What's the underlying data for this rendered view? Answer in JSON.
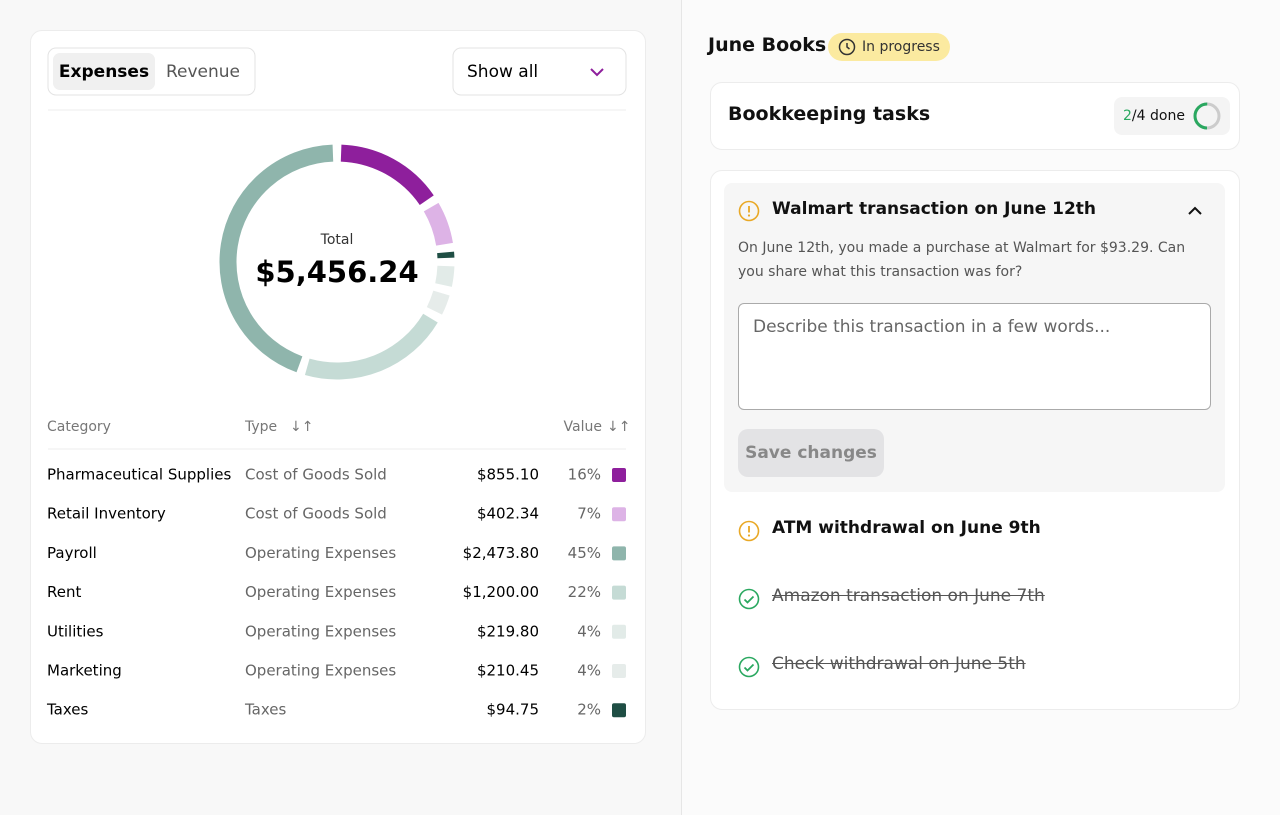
{
  "tabs": [
    "Expenses",
    "Revenue"
  ],
  "filter": "Show all",
  "chart_data": {
    "type": "donut",
    "center_label": "Total",
    "center_value": "$5,456.24",
    "categories": [
      "Pharmaceutical Supplies",
      "Retail Inventory",
      "Payroll",
      "Rent",
      "Utilities",
      "Marketing",
      "Taxes"
    ],
    "values": [
      16,
      7,
      45,
      22,
      4,
      4,
      2
    ],
    "value_labels": [
      "16%",
      "7%",
      "45%",
      "22%",
      "4%",
      "4%",
      "2%"
    ],
    "colors": [
      "#8e1f9c",
      "#ddb3e6",
      "#8fb5ac",
      "#c5dbd5",
      "#e2ebe8",
      "#e6ecea",
      "#1f4e44"
    ]
  },
  "table": {
    "headers": [
      "Category",
      "Type",
      "Value"
    ],
    "types": [
      "Cost of Goods Sold",
      "Cost of Goods Sold",
      "Operating Expenses",
      "Operating Expenses",
      "Operating Expenses",
      "Operating Expenses",
      "Taxes"
    ],
    "amounts": [
      "$855.10",
      "$402.34",
      "$2,473.80",
      "$1,200.00",
      "$219.80",
      "$210.45",
      "$94.75"
    ]
  },
  "books": {
    "title": "June Books",
    "status": "In progress",
    "tasks_title": "Bookkeeping tasks",
    "progress": {
      "done": 2,
      "total": 4,
      "label": "done"
    },
    "tasks": [
      {
        "title": "Walmart transaction on June 12th",
        "status": "open",
        "body": "On June 12th, you made a purchase at Walmart for $93.29. Can you share what this transaction was for?",
        "placeholder": "Describe this transaction in a few words...",
        "button": "Save changes"
      },
      {
        "title": "ATM withdrawal on June 9th",
        "status": "open"
      },
      {
        "title": "Amazon transaction on June 7th",
        "status": "done"
      },
      {
        "title": "Check withdrawal on June 5th",
        "status": "done"
      }
    ]
  }
}
